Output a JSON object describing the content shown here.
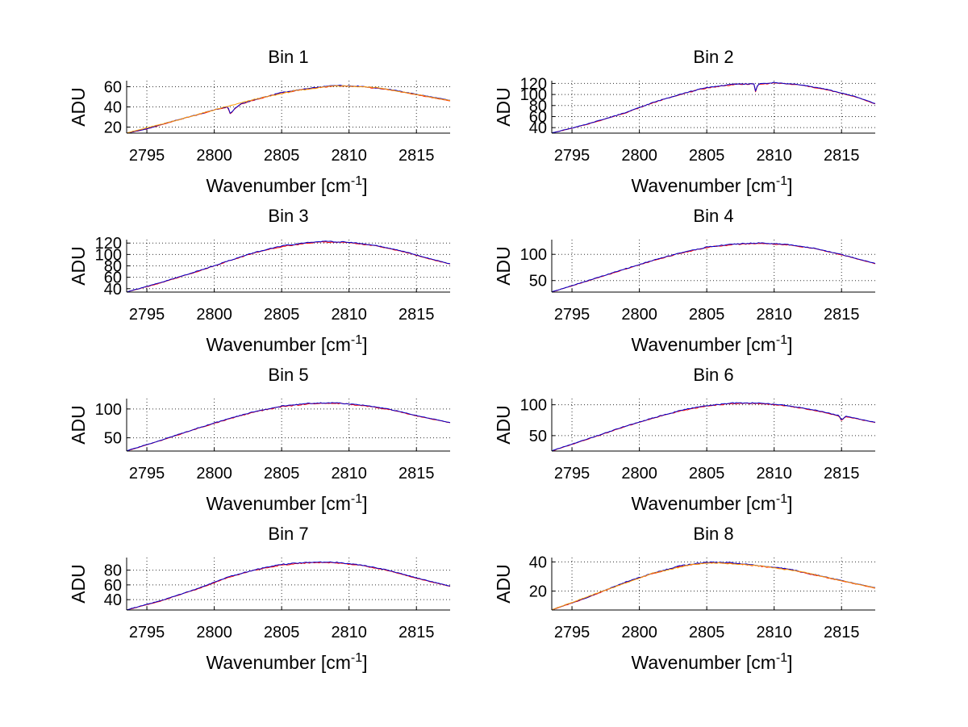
{
  "chart_data": [
    {
      "type": "line",
      "title": "Bin 1",
      "xlabel": "Wavenumber [cm",
      "xlabel_sup": "-1",
      "xlabel_suffix": "]",
      "ylabel": "ADU",
      "xlim": [
        2793.5,
        2817.5
      ],
      "ylim": [
        14,
        66
      ],
      "xticks": [
        2795,
        2800,
        2805,
        2810,
        2815
      ],
      "yticks": [
        20,
        40,
        60
      ],
      "grid": true,
      "series": [
        {
          "name": "red",
          "color": "#ff0000",
          "x": [
            2793.5,
            2795,
            2797,
            2799,
            2800,
            2801,
            2801.2,
            2801.5,
            2802,
            2803,
            2805,
            2807,
            2809,
            2811,
            2813,
            2815,
            2817.5
          ],
          "y": [
            14,
            18,
            26,
            33,
            37,
            40,
            33,
            38,
            43,
            47,
            54,
            58,
            61,
            60,
            57,
            52,
            46
          ]
        },
        {
          "name": "blue",
          "color": "#0000cc",
          "x": [
            2793.5,
            2795,
            2797,
            2799,
            2800,
            2801,
            2801.2,
            2801.5,
            2802,
            2803,
            2805,
            2807,
            2809,
            2811,
            2813,
            2815,
            2817.5
          ],
          "y": [
            14,
            18.3,
            26.2,
            33.2,
            37.2,
            40.1,
            33.3,
            38.1,
            43.3,
            47.2,
            54.3,
            58.2,
            61.5,
            60.3,
            57.4,
            52.6,
            46.5
          ]
        },
        {
          "name": "orange",
          "color": "#ff9900",
          "x": [
            2793.5,
            2797,
            2800,
            2803,
            2806,
            2809,
            2812,
            2815,
            2817.5
          ],
          "y": [
            14.2,
            26,
            37,
            47.5,
            56,
            61.2,
            59.3,
            52.3,
            46.2
          ]
        }
      ]
    },
    {
      "type": "line",
      "title": "Bin 2",
      "xlabel": "Wavenumber [cm",
      "xlabel_sup": "-1",
      "xlabel_suffix": "]",
      "ylabel": "ADU",
      "xlim": [
        2793.5,
        2817.5
      ],
      "ylim": [
        30,
        125
      ],
      "xticks": [
        2795,
        2800,
        2805,
        2810,
        2815
      ],
      "yticks": [
        40,
        60,
        80,
        100,
        120
      ],
      "grid": true,
      "series": [
        {
          "name": "red",
          "color": "#ff0000",
          "x": [
            2793.5,
            2796,
            2799,
            2801,
            2803,
            2805,
            2807,
            2808.5,
            2808.6,
            2808.8,
            2810,
            2812,
            2814,
            2816,
            2817.5
          ],
          "y": [
            30,
            45,
            67,
            85,
            100,
            112,
            118,
            119,
            103,
            118,
            121,
            117,
            108,
            96,
            83
          ]
        },
        {
          "name": "blue",
          "color": "#0000cc",
          "x": [
            2793.5,
            2796,
            2799,
            2801,
            2803,
            2805,
            2807,
            2808.5,
            2808.6,
            2808.8,
            2810,
            2812,
            2814,
            2816,
            2817.5
          ],
          "y": [
            30.3,
            45.4,
            67.3,
            85.4,
            100.5,
            112.6,
            118.7,
            119.5,
            104,
            118.8,
            121.5,
            117.6,
            108.7,
            96.5,
            83.5
          ]
        }
      ]
    },
    {
      "type": "line",
      "title": "Bin 3",
      "xlabel": "Wavenumber [cm",
      "xlabel_sup": "-1",
      "xlabel_suffix": "]",
      "ylabel": "ADU",
      "xlim": [
        2793.5,
        2817.5
      ],
      "ylim": [
        34,
        126
      ],
      "xticks": [
        2795,
        2800,
        2805,
        2810,
        2815
      ],
      "yticks": [
        40,
        60,
        80,
        100,
        120
      ],
      "grid": true,
      "series": [
        {
          "name": "red",
          "color": "#ff0000",
          "x": [
            2793.5,
            2796,
            2799,
            2801,
            2803,
            2805,
            2807,
            2808,
            2810,
            2812,
            2814,
            2816,
            2817.5
          ],
          "y": [
            34,
            50,
            72,
            88,
            103,
            114,
            120,
            122,
            121,
            115,
            105,
            92,
            83
          ]
        },
        {
          "name": "blue",
          "color": "#0000cc",
          "x": [
            2793.5,
            2796,
            2799,
            2801,
            2803,
            2805,
            2807,
            2808,
            2810,
            2812,
            2814,
            2816,
            2817.5
          ],
          "y": [
            34.4,
            50.5,
            72.6,
            88.5,
            103.6,
            114.7,
            121,
            123,
            121.6,
            115.6,
            105.7,
            92.6,
            83.6
          ]
        }
      ]
    },
    {
      "type": "line",
      "title": "Bin 4",
      "xlabel": "Wavenumber [cm",
      "xlabel_sup": "-1",
      "xlabel_suffix": "]",
      "ylabel": "ADU",
      "xlim": [
        2793.5,
        2817.5
      ],
      "ylim": [
        28,
        128
      ],
      "xticks": [
        2795,
        2800,
        2805,
        2810,
        2815
      ],
      "yticks": [
        50,
        100
      ],
      "grid": true,
      "series": [
        {
          "name": "red",
          "color": "#ff0000",
          "x": [
            2793.5,
            2796,
            2799,
            2801,
            2803,
            2805,
            2807,
            2809,
            2811,
            2813,
            2815,
            2817.5
          ],
          "y": [
            28,
            48,
            72,
            88,
            102,
            113,
            119,
            121,
            118,
            111,
            99,
            82
          ]
        },
        {
          "name": "blue",
          "color": "#0000cc",
          "x": [
            2793.5,
            2796,
            2799,
            2801,
            2803,
            2805,
            2807,
            2809,
            2811,
            2813,
            2815,
            2817.5
          ],
          "y": [
            28.4,
            48.5,
            72.6,
            88.6,
            102.7,
            113.7,
            119.8,
            121.8,
            118.7,
            111.6,
            99.6,
            82.6
          ]
        }
      ]
    },
    {
      "type": "line",
      "title": "Bin 5",
      "xlabel": "Wavenumber [cm",
      "xlabel_sup": "-1",
      "xlabel_suffix": "]",
      "ylabel": "ADU",
      "xlim": [
        2793.5,
        2817.5
      ],
      "ylim": [
        27,
        118
      ],
      "xticks": [
        2795,
        2800,
        2805,
        2810,
        2815
      ],
      "yticks": [
        50,
        100
      ],
      "grid": true,
      "series": [
        {
          "name": "red",
          "color": "#ff0000",
          "x": [
            2793.5,
            2796,
            2799,
            2801,
            2803,
            2805,
            2807,
            2809,
            2811,
            2813,
            2815,
            2817.5
          ],
          "y": [
            27,
            45,
            68,
            82,
            95,
            104,
            109,
            110,
            106,
            99,
            88,
            76
          ]
        },
        {
          "name": "blue",
          "color": "#0000cc",
          "x": [
            2793.5,
            2796,
            2799,
            2801,
            2803,
            2805,
            2807,
            2809,
            2811,
            2813,
            2815,
            2817.5
          ],
          "y": [
            27.4,
            45.5,
            68.6,
            82.6,
            95.7,
            104.8,
            109.8,
            110.8,
            106.7,
            99.6,
            88.6,
            76.5
          ]
        }
      ]
    },
    {
      "type": "line",
      "title": "Bin 6",
      "xlabel": "Wavenumber [cm",
      "xlabel_sup": "-1",
      "xlabel_suffix": "]",
      "ylabel": "ADU",
      "xlim": [
        2793.5,
        2817.5
      ],
      "ylim": [
        25,
        110
      ],
      "xticks": [
        2795,
        2800,
        2805,
        2810,
        2815
      ],
      "yticks": [
        50,
        100
      ],
      "grid": true,
      "series": [
        {
          "name": "red",
          "color": "#ff0000",
          "x": [
            2793.5,
            2796,
            2799,
            2801,
            2803,
            2805,
            2807,
            2809,
            2811,
            2813,
            2814.8,
            2815,
            2815.3,
            2817.5
          ],
          "y": [
            25,
            43,
            65,
            78,
            90,
            98,
            102,
            102,
            98,
            91,
            82,
            74,
            81,
            71
          ]
        },
        {
          "name": "blue",
          "color": "#0000cc",
          "x": [
            2793.5,
            2796,
            2799,
            2801,
            2803,
            2805,
            2807,
            2809,
            2811,
            2813,
            2814.8,
            2815,
            2815.3,
            2817.5
          ],
          "y": [
            25.4,
            43.5,
            65.6,
            78.6,
            90.7,
            98.8,
            102.8,
            102.8,
            98.7,
            91.6,
            82.6,
            74.8,
            81.6,
            71.5
          ]
        }
      ]
    },
    {
      "type": "line",
      "title": "Bin 7",
      "xlabel": "Wavenumber [cm",
      "xlabel_sup": "-1",
      "xlabel_suffix": "]",
      "ylabel": "ADU",
      "xlim": [
        2793.5,
        2817.5
      ],
      "ylim": [
        26,
        97
      ],
      "xticks": [
        2795,
        2800,
        2805,
        2810,
        2815
      ],
      "yticks": [
        40,
        60,
        80
      ],
      "grid": true,
      "series": [
        {
          "name": "red",
          "color": "#ff0000",
          "x": [
            2793.5,
            2796,
            2799,
            2801,
            2803,
            2805,
            2807,
            2809,
            2811,
            2813,
            2815,
            2817.5
          ],
          "y": [
            26,
            38,
            56,
            70,
            80,
            87,
            90,
            90,
            86,
            79,
            69,
            58
          ]
        },
        {
          "name": "blue",
          "color": "#0000cc",
          "x": [
            2793.5,
            2796,
            2799,
            2801,
            2803,
            2805,
            2807,
            2809,
            2811,
            2813,
            2815,
            2817.5
          ],
          "y": [
            26.3,
            38.4,
            56.5,
            70.6,
            80.6,
            87.7,
            90.7,
            90.7,
            86.6,
            79.6,
            69.5,
            58.4
          ]
        }
      ]
    },
    {
      "type": "line",
      "title": "Bin 8",
      "xlabel": "Wavenumber [cm",
      "xlabel_sup": "-1",
      "xlabel_suffix": "]",
      "ylabel": "ADU",
      "xlim": [
        2793.5,
        2817.5
      ],
      "ylim": [
        7,
        43
      ],
      "xticks": [
        2795,
        2800,
        2805,
        2810,
        2815
      ],
      "yticks": [
        20,
        40
      ],
      "grid": true,
      "series": [
        {
          "name": "red",
          "color": "#ff0000",
          "x": [
            2793.5,
            2796,
            2799,
            2801,
            2803,
            2805,
            2807,
            2809,
            2811,
            2813,
            2815,
            2817.5
          ],
          "y": [
            7,
            15,
            26,
            32,
            37,
            39.5,
            39,
            37,
            35,
            31,
            27,
            22
          ]
        },
        {
          "name": "blue",
          "color": "#0000cc",
          "x": [
            2793.5,
            2796,
            2799,
            2801,
            2803,
            2805,
            2807,
            2809,
            2811,
            2813,
            2815,
            2817.5
          ],
          "y": [
            7.2,
            15.2,
            26.3,
            32.3,
            37.3,
            39.8,
            39.3,
            37.3,
            35.3,
            31.3,
            27.3,
            22.3
          ]
        },
        {
          "name": "orange",
          "color": "#ff9900",
          "x": [
            2793.5,
            2797,
            2801,
            2804,
            2806,
            2809,
            2812,
            2815,
            2817.5
          ],
          "y": [
            7.1,
            19,
            32.2,
            38.5,
            39.4,
            37.2,
            33.3,
            27.1,
            22.1
          ]
        }
      ]
    }
  ]
}
